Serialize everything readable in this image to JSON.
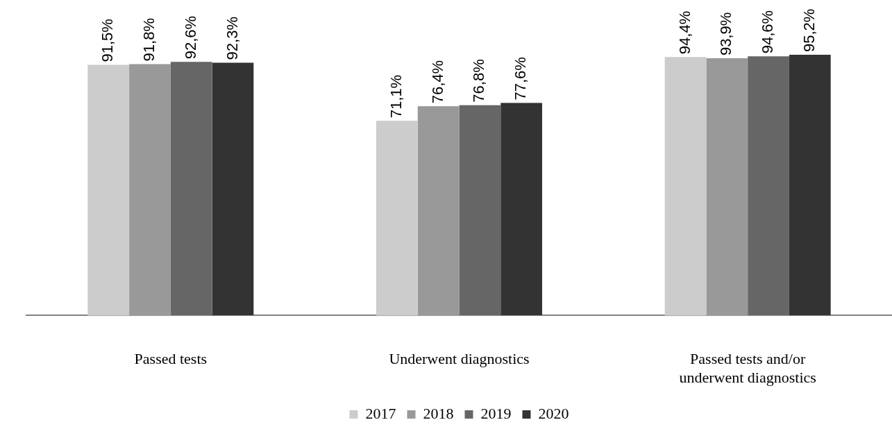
{
  "chart_data": {
    "type": "bar",
    "categories": [
      "Passed tests",
      "Underwent diagnostics",
      "Passed tests and/or underwent diagnostics"
    ],
    "series": [
      {
        "name": "2017",
        "color": "#cccccc",
        "values": [
          91.5,
          71.1,
          94.4
        ],
        "value_labels": [
          "91,5%",
          "71,1%",
          "94,4%"
        ]
      },
      {
        "name": "2018",
        "color": "#999999",
        "values": [
          91.8,
          76.4,
          93.9
        ],
        "value_labels": [
          "91,8%",
          "76,4%",
          "93,9%"
        ]
      },
      {
        "name": "2019",
        "color": "#666666",
        "values": [
          92.6,
          76.8,
          94.6
        ],
        "value_labels": [
          "92,6%",
          "76,8%",
          "94,6%"
        ]
      },
      {
        "name": "2020",
        "color": "#333333",
        "values": [
          92.3,
          77.6,
          95.2
        ],
        "value_labels": [
          "92,3%",
          "77,6%",
          "95,2%"
        ]
      }
    ],
    "legend": "bottom"
  }
}
